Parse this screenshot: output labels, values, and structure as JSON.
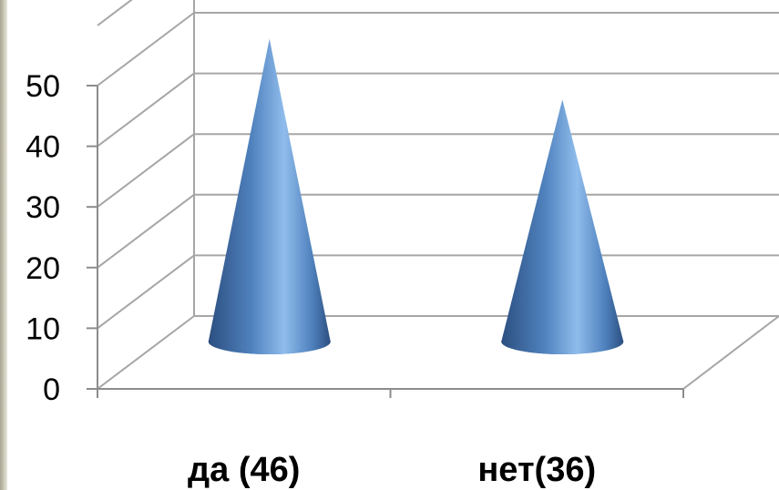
{
  "chart_data": {
    "type": "bar",
    "shape": "cone-3d",
    "categories": [
      "да (46)",
      "нет(36)"
    ],
    "values": [
      46,
      36
    ],
    "ylim": [
      0,
      50
    ],
    "yticks": [
      "0",
      "10",
      "20",
      "30",
      "40",
      "50"
    ],
    "grid": true,
    "legend": "none",
    "colors": {
      "cone_light": "#8fbcec",
      "cone_mid": "#4f81bd",
      "cone_dark": "#2c4f80",
      "grid": "#a6a6a6"
    }
  }
}
